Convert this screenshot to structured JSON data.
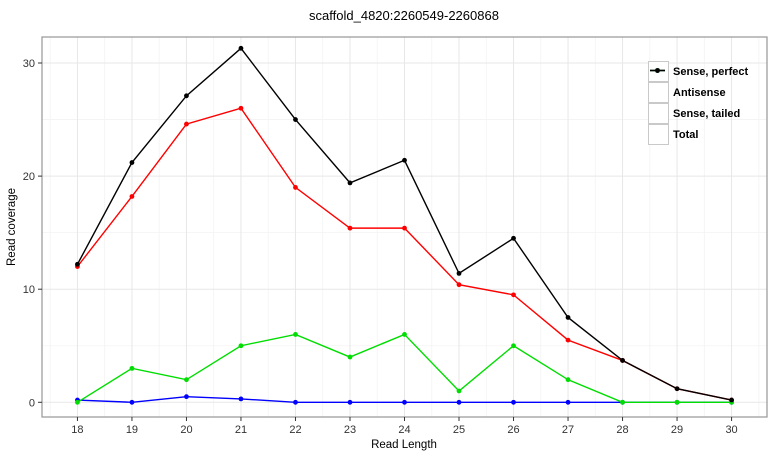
{
  "chart_data": {
    "type": "line",
    "title": "scaffold_4820:2260549-2260868",
    "xlabel": "Read Length",
    "ylabel": "Read coverage",
    "x": [
      18,
      19,
      20,
      21,
      22,
      23,
      24,
      25,
      26,
      27,
      28,
      29,
      30
    ],
    "series": [
      {
        "name": "Sense, perfect",
        "color": "#ff0000",
        "values": [
          12.0,
          18.2,
          24.6,
          26.0,
          19.0,
          15.4,
          15.4,
          10.4,
          9.5,
          5.5,
          3.7,
          1.2,
          0.2
        ]
      },
      {
        "name": "Antisense",
        "color": "#0000ff",
        "values": [
          0.2,
          0.0,
          0.5,
          0.3,
          0.0,
          0.0,
          0.0,
          0.0,
          0.0,
          0.0,
          0.0,
          0.0,
          0.0
        ]
      },
      {
        "name": "Sense, tailed",
        "color": "#00dd00",
        "values": [
          0.0,
          3.0,
          2.0,
          5.0,
          6.0,
          4.0,
          6.0,
          1.0,
          5.0,
          2.0,
          0.0,
          0.0,
          0.0
        ]
      },
      {
        "name": "Total",
        "color": "#000000",
        "values": [
          12.2,
          21.2,
          27.1,
          31.3,
          25.0,
          19.4,
          21.4,
          11.4,
          14.5,
          7.5,
          3.7,
          1.2,
          0.2
        ]
      }
    ],
    "xlim": [
      17.35,
      30.65
    ],
    "ylim": [
      -1.3,
      32.3
    ],
    "x_ticks": [
      18,
      19,
      20,
      21,
      22,
      23,
      24,
      25,
      26,
      27,
      28,
      29,
      30
    ],
    "y_ticks": [
      0,
      10,
      20,
      30
    ],
    "x_minor": [
      17.5,
      18.5,
      19.5,
      20.5,
      21.5,
      22.5,
      23.5,
      24.5,
      25.5,
      26.5,
      27.5,
      28.5,
      29.5,
      30.5
    ],
    "y_minor": [
      5,
      15,
      25
    ],
    "grid": true,
    "legend_position": "top-right"
  },
  "style_colors": {
    "panel_border": "#969696",
    "grid_major": "#e7e7e7",
    "grid_minor": "#f3f3f3",
    "tick": "#333333"
  }
}
